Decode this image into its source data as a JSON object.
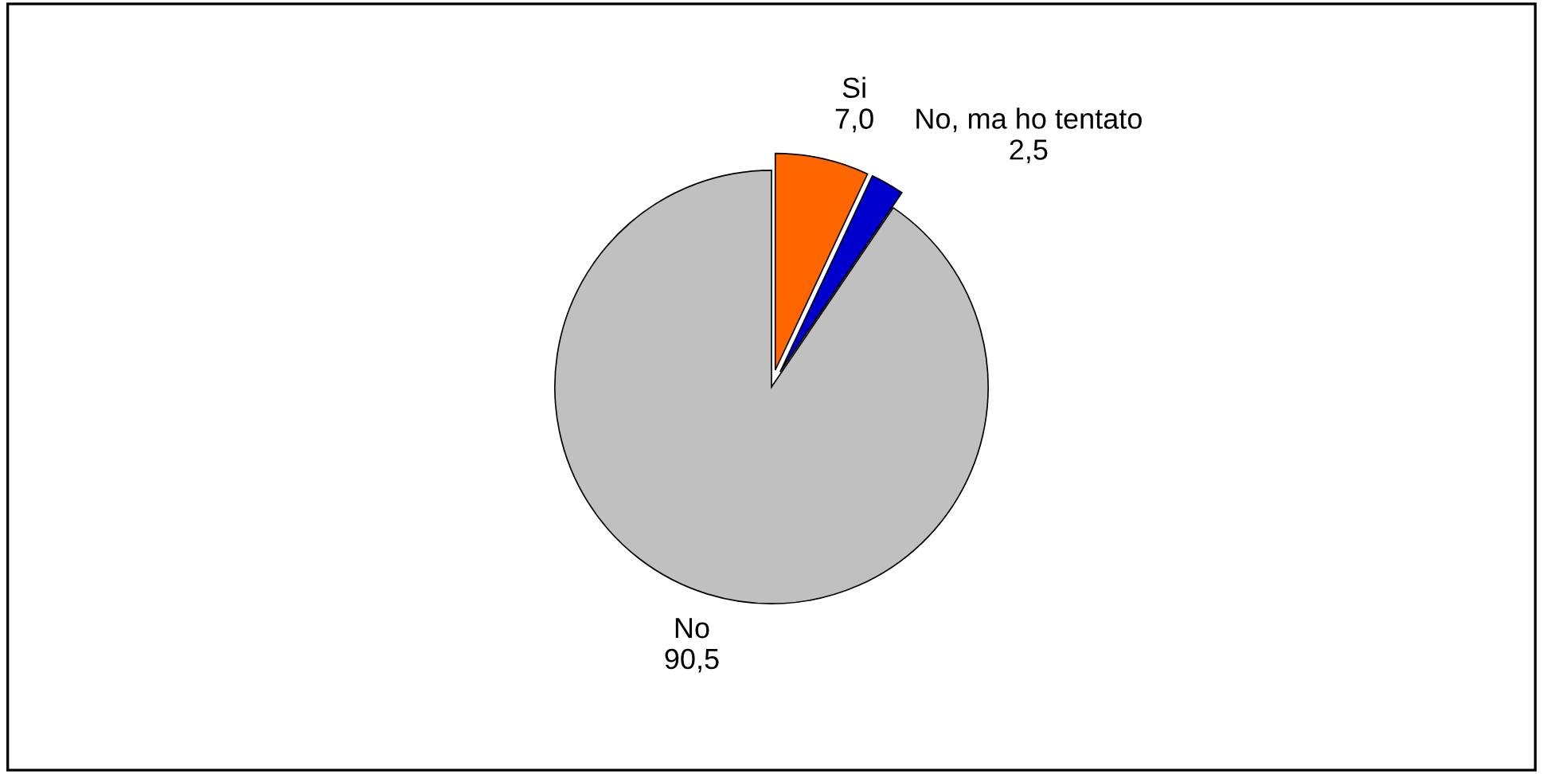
{
  "chart_data": {
    "type": "pie",
    "categories": [
      "Si",
      "No, ma ho tentato",
      "No"
    ],
    "values": [
      7.0,
      2.5,
      90.5
    ],
    "colors": [
      "#ff6600",
      "#0000cc",
      "#c0c0c0"
    ],
    "value_labels": [
      "7,0",
      "2,5",
      "90,5"
    ],
    "legend": false
  }
}
